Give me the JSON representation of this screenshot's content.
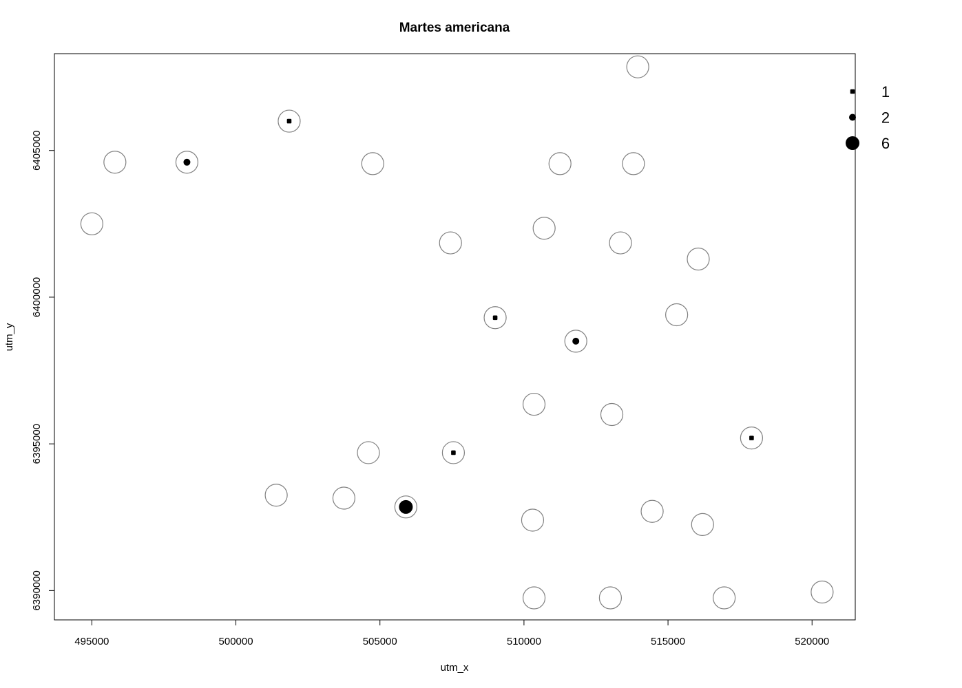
{
  "chart_data": {
    "type": "scatter",
    "title": "Martes americana",
    "xlabel": "utm_x",
    "ylabel": "utm_y",
    "xlim": [
      493700,
      521500
    ],
    "ylim": [
      6389000,
      6408300
    ],
    "x_ticks": [
      495000,
      500000,
      505000,
      510000,
      515000,
      520000
    ],
    "y_ticks": [
      6390000,
      6395000,
      6400000,
      6405000
    ],
    "x_tick_labels": [
      "495000",
      "500000",
      "505000",
      "510000",
      "515000",
      "520000"
    ],
    "y_tick_labels": [
      "6390000",
      "6395000",
      "6400000",
      "6405000"
    ],
    "sites": [
      {
        "x": 495000,
        "y": 6402500,
        "count": 0
      },
      {
        "x": 495800,
        "y": 6404600,
        "count": 0
      },
      {
        "x": 498300,
        "y": 6404600,
        "count": 2
      },
      {
        "x": 501850,
        "y": 6406000,
        "count": 1
      },
      {
        "x": 504750,
        "y": 6404550,
        "count": 0
      },
      {
        "x": 507450,
        "y": 6401850,
        "count": 0
      },
      {
        "x": 510700,
        "y": 6402350,
        "count": 0
      },
      {
        "x": 511250,
        "y": 6404550,
        "count": 0
      },
      {
        "x": 513950,
        "y": 6407850,
        "count": 0
      },
      {
        "x": 513800,
        "y": 6404550,
        "count": 0
      },
      {
        "x": 513350,
        "y": 6401850,
        "count": 0
      },
      {
        "x": 516050,
        "y": 6401300,
        "count": 0
      },
      {
        "x": 509000,
        "y": 6399300,
        "count": 1
      },
      {
        "x": 511800,
        "y": 6398500,
        "count": 2
      },
      {
        "x": 515300,
        "y": 6399400,
        "count": 0
      },
      {
        "x": 510350,
        "y": 6396350,
        "count": 0
      },
      {
        "x": 513050,
        "y": 6396000,
        "count": 0
      },
      {
        "x": 517900,
        "y": 6395200,
        "count": 1
      },
      {
        "x": 504600,
        "y": 6394700,
        "count": 0
      },
      {
        "x": 507550,
        "y": 6394700,
        "count": 1
      },
      {
        "x": 501400,
        "y": 6393250,
        "count": 0
      },
      {
        "x": 503750,
        "y": 6393150,
        "count": 0
      },
      {
        "x": 505900,
        "y": 6392850,
        "count": 6
      },
      {
        "x": 510300,
        "y": 6392400,
        "count": 0
      },
      {
        "x": 514450,
        "y": 6392700,
        "count": 0
      },
      {
        "x": 516200,
        "y": 6392250,
        "count": 0
      },
      {
        "x": 510350,
        "y": 6389750,
        "count": 0
      },
      {
        "x": 513000,
        "y": 6389750,
        "count": 0
      },
      {
        "x": 516950,
        "y": 6389750,
        "count": 0
      },
      {
        "x": 520350,
        "y": 6389950,
        "count": 0
      }
    ],
    "legend": {
      "placement": "top-right",
      "entries": [
        {
          "label": "1",
          "count": 1
        },
        {
          "label": "2",
          "count": 2
        },
        {
          "label": "6",
          "count": 6
        }
      ]
    },
    "colors": {
      "site_outline": "#808080",
      "count_marker": "#000000",
      "box": "#000000"
    }
  }
}
